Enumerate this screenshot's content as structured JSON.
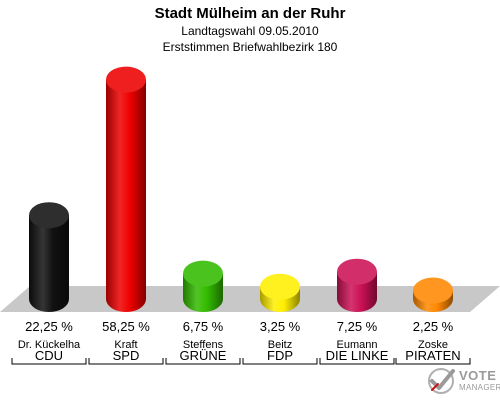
{
  "header": {
    "title": "Stadt Mülheim an der Ruhr",
    "subtitle1": "Landtagswahl 09.05.2010",
    "subtitle2": "Erststimmen Briefwahlbezirk 180"
  },
  "chart_data": {
    "type": "bar",
    "title": "Stadt Mülheim an der Ruhr",
    "subtitle": "Landtagswahl 09.05.2010 — Erststimmen Briefwahlbezirk 180",
    "categories": [
      "CDU",
      "SPD",
      "GRÜNE",
      "FDP",
      "DIE LINKE",
      "PIRATEN"
    ],
    "candidates": [
      "Dr. Kückelha",
      "Kraft",
      "Steffens",
      "Beitz",
      "Eumann",
      "Zoske"
    ],
    "values": [
      22.25,
      58.25,
      6.75,
      3.25,
      7.25,
      2.25
    ],
    "value_labels": [
      "22,25 %",
      "58,25 %",
      "6,75 %",
      "3,25 %",
      "7,25 %",
      "2,25 %"
    ],
    "colors": [
      "#111111",
      "#ee0000",
      "#33bb00",
      "#ffee00",
      "#cc1155",
      "#ff8800"
    ],
    "ylim": [
      0,
      60
    ],
    "grid": false,
    "legend": "none"
  },
  "logo": {
    "line1": "VOTE",
    "line2": "MANAGER",
    "icon": "checkmark-ballot-icon"
  }
}
